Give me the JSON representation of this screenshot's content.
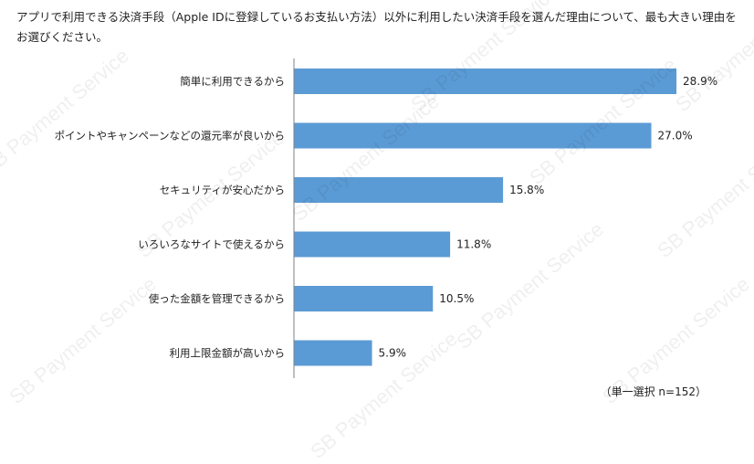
{
  "title": "アプリで利用できる決済手段（Apple IDに登録しているお支払い方法）以外に利用したい決済手段を選んだ理由について、最も大きい理由をお選びください。",
  "footnote": "（単一選択 n=152）",
  "watermark": "SB Payment Service",
  "colors": {
    "bar": "#5b9bd5",
    "axis": "#7f7f7f"
  },
  "chart_data": {
    "type": "bar",
    "orientation": "horizontal",
    "categories": [
      "簡単に利用できるから",
      "ポイントやキャンペーンなどの還元率が良いから",
      "セキュリティが安心だから",
      "いろいろなサイトで使えるから",
      "使った金額を管理できるから",
      "利用上限金額が高いから"
    ],
    "values": [
      28.9,
      27.0,
      15.8,
      11.8,
      10.5,
      5.9
    ],
    "value_labels": [
      "28.9%",
      "27.0%",
      "15.8%",
      "11.8%",
      "10.5%",
      "5.9%"
    ],
    "xlim": [
      0,
      30
    ],
    "grid": false,
    "legend": "none"
  }
}
